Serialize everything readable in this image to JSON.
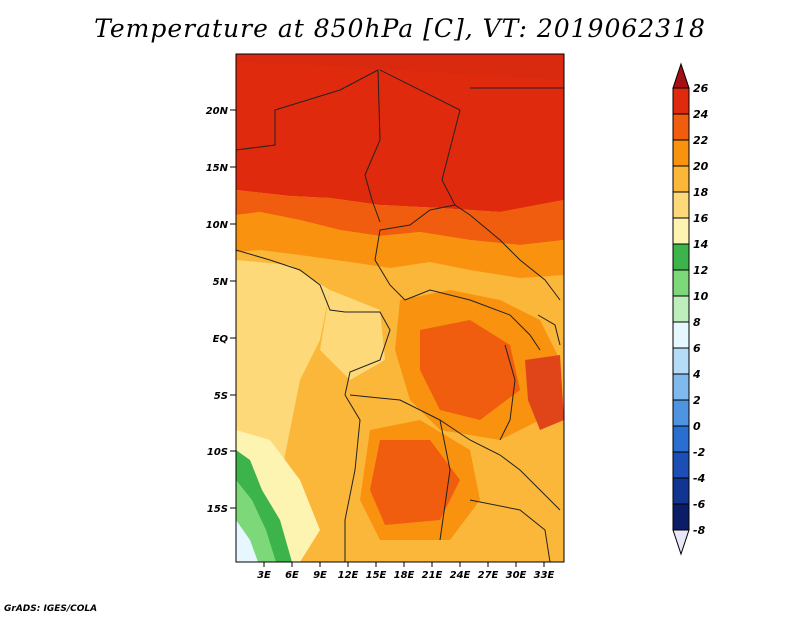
{
  "title": "Temperature at 850hPa [C], VT: 2019062318",
  "credit": "GrADS: IGES/COLA",
  "map": {
    "lat_labels": [
      "20N",
      "15N",
      "10N",
      "5N",
      "EQ",
      "5S",
      "10S",
      "15S"
    ],
    "lon_labels": [
      "3E",
      "6E",
      "9E",
      "12E",
      "15E",
      "18E",
      "21E",
      "24E",
      "27E",
      "30E",
      "33E"
    ]
  },
  "colorbar": {
    "unit": "C",
    "levels": [
      {
        "label": "26",
        "color": "#a50f15"
      },
      {
        "label": "24",
        "color": "#e02a0d"
      },
      {
        "label": "22",
        "color": "#f05d0e"
      },
      {
        "label": "20",
        "color": "#f9920f"
      },
      {
        "label": "18",
        "color": "#fbb739"
      },
      {
        "label": "16",
        "color": "#fdd97a"
      },
      {
        "label": "14",
        "color": "#fef4b2"
      },
      {
        "label": "12",
        "color": "#3cb44b"
      },
      {
        "label": "10",
        "color": "#7dd87a"
      },
      {
        "label": "8",
        "color": "#bdeebb"
      },
      {
        "label": "6",
        "color": "#e6f7ff"
      },
      {
        "label": "4",
        "color": "#b4dcf7"
      },
      {
        "label": "2",
        "color": "#7fb9ee"
      },
      {
        "label": "0",
        "color": "#4f94e0"
      },
      {
        "label": "-2",
        "color": "#2a6ed1"
      },
      {
        "label": "-4",
        "color": "#1c4fb5"
      },
      {
        "label": "-6",
        "color": "#123591"
      },
      {
        "label": "-8",
        "color": "#0a1d66"
      }
    ],
    "under_color": "#e8e8f8"
  }
}
